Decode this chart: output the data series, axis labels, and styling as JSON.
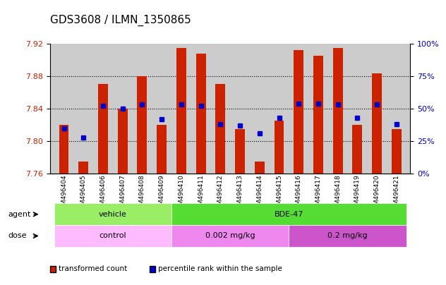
{
  "title": "GDS3608 / ILMN_1350865",
  "samples": [
    "GSM496404",
    "GSM496405",
    "GSM496406",
    "GSM496407",
    "GSM496408",
    "GSM496409",
    "GSM496410",
    "GSM496411",
    "GSM496412",
    "GSM496413",
    "GSM496414",
    "GSM496415",
    "GSM496416",
    "GSM496417",
    "GSM496418",
    "GSM496419",
    "GSM496420",
    "GSM496421"
  ],
  "bar_tops": [
    7.82,
    7.775,
    7.87,
    7.84,
    7.88,
    7.82,
    7.915,
    7.908,
    7.87,
    7.815,
    7.775,
    7.825,
    7.912,
    7.905,
    7.915,
    7.82,
    7.883,
    7.815
  ],
  "bar_bottom": 7.76,
  "percentile_ranks": [
    35,
    28,
    52,
    50,
    53,
    42,
    53,
    52,
    38,
    37,
    31,
    43,
    54,
    54,
    53,
    43,
    53,
    38
  ],
  "ymin": 7.76,
  "ymax": 7.92,
  "yticks": [
    7.76,
    7.8,
    7.84,
    7.88,
    7.92
  ],
  "right_yticks": [
    0,
    25,
    50,
    75,
    100
  ],
  "bar_color": "#cc2200",
  "dot_color": "#0000cc",
  "agent_groups": [
    {
      "label": "vehicle",
      "start": 0,
      "end": 5,
      "color": "#99ee66"
    },
    {
      "label": "BDE-47",
      "start": 6,
      "end": 17,
      "color": "#55dd33"
    }
  ],
  "dose_groups": [
    {
      "label": "control",
      "start": 0,
      "end": 5,
      "color": "#ffbbff"
    },
    {
      "label": "0.002 mg/kg",
      "start": 6,
      "end": 11,
      "color": "#ee88ee"
    },
    {
      "label": "0.2 mg/kg",
      "start": 12,
      "end": 17,
      "color": "#cc55cc"
    }
  ],
  "background_color": "#ffffff",
  "tick_area_color": "#cccccc",
  "legend_red_label": "transformed count",
  "legend_blue_label": "percentile rank within the sample"
}
